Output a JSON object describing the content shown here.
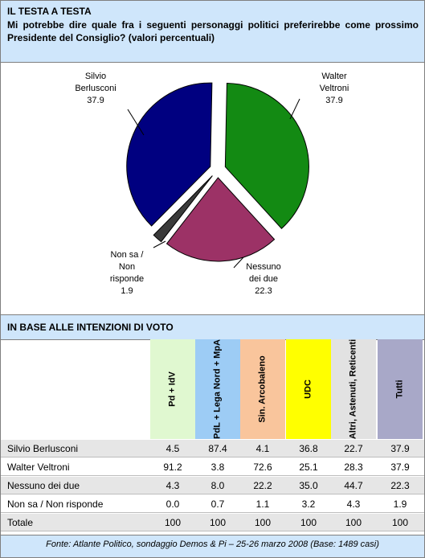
{
  "header": {
    "title": "IL TESTA A TESTA",
    "question": "Mi potrebbe dire quale fra i seguenti personaggi politici preferirebbe come prossimo Presidente del Consiglio? (valori percentuali)"
  },
  "chart_data": {
    "type": "pie",
    "slices": [
      {
        "label": "Walter Veltroni",
        "value": 37.9,
        "color": "#138a13"
      },
      {
        "label": "Nessuno dei due",
        "value": 22.3,
        "color": "#9c3266"
      },
      {
        "label": "Non sa / Non risponde",
        "value": 1.9,
        "color": "#3a3a3a"
      },
      {
        "label": "Silvio Berlusconi",
        "value": 37.9,
        "color": "#000080"
      }
    ],
    "labels": {
      "berlusconi": {
        "line1": "Silvio",
        "line2": "Berlusconi",
        "value": "37.9"
      },
      "veltroni": {
        "line1": "Walter",
        "line2": "Veltroni",
        "value": "37.9"
      },
      "nessuno": {
        "line1": "Nessuno",
        "line2": "dei due",
        "value": "22.3"
      },
      "nonsa": {
        "line1": "Non sa /",
        "line2": "Non",
        "line3": "risponde",
        "value": "1.9"
      }
    }
  },
  "table": {
    "section_title": "IN BASE ALLE INTENZIONI DI VOTO",
    "columns": [
      {
        "label": "Pd + IdV",
        "color": "#e0f8d0"
      },
      {
        "label": "PdL + Lega Nord + MpA",
        "color": "#9dccf5"
      },
      {
        "label": "Sin. Arcobaleno",
        "color": "#f9c59c"
      },
      {
        "label": "UDC",
        "color": "#ffff00"
      },
      {
        "label": "Altri, Astenuti, Reticenti",
        "color": "#e2e2e2"
      },
      {
        "label": "Tutti",
        "color": "#a8a8c8"
      }
    ],
    "rows": [
      {
        "name": "Silvio Berlusconi",
        "values": [
          "4.5",
          "87.4",
          "4.1",
          "36.8",
          "22.7",
          "37.9"
        ]
      },
      {
        "name": "Walter Veltroni",
        "values": [
          "91.2",
          "3.8",
          "72.6",
          "25.1",
          "28.3",
          "37.9"
        ]
      },
      {
        "name": "Nessuno dei due",
        "values": [
          "4.3",
          "8.0",
          "22.2",
          "35.0",
          "44.7",
          "22.3"
        ]
      },
      {
        "name": "Non sa / Non risponde",
        "values": [
          "0.0",
          "0.7",
          "1.1",
          "3.2",
          "4.3",
          "1.9"
        ]
      },
      {
        "name": "Totale",
        "values": [
          "100",
          "100",
          "100",
          "100",
          "100",
          "100"
        ]
      }
    ]
  },
  "footer": {
    "source": "Fonte: Atlante Politico, sondaggio Demos & Pi – 25-26 marzo 2008 (Base: 1489 casi)"
  }
}
